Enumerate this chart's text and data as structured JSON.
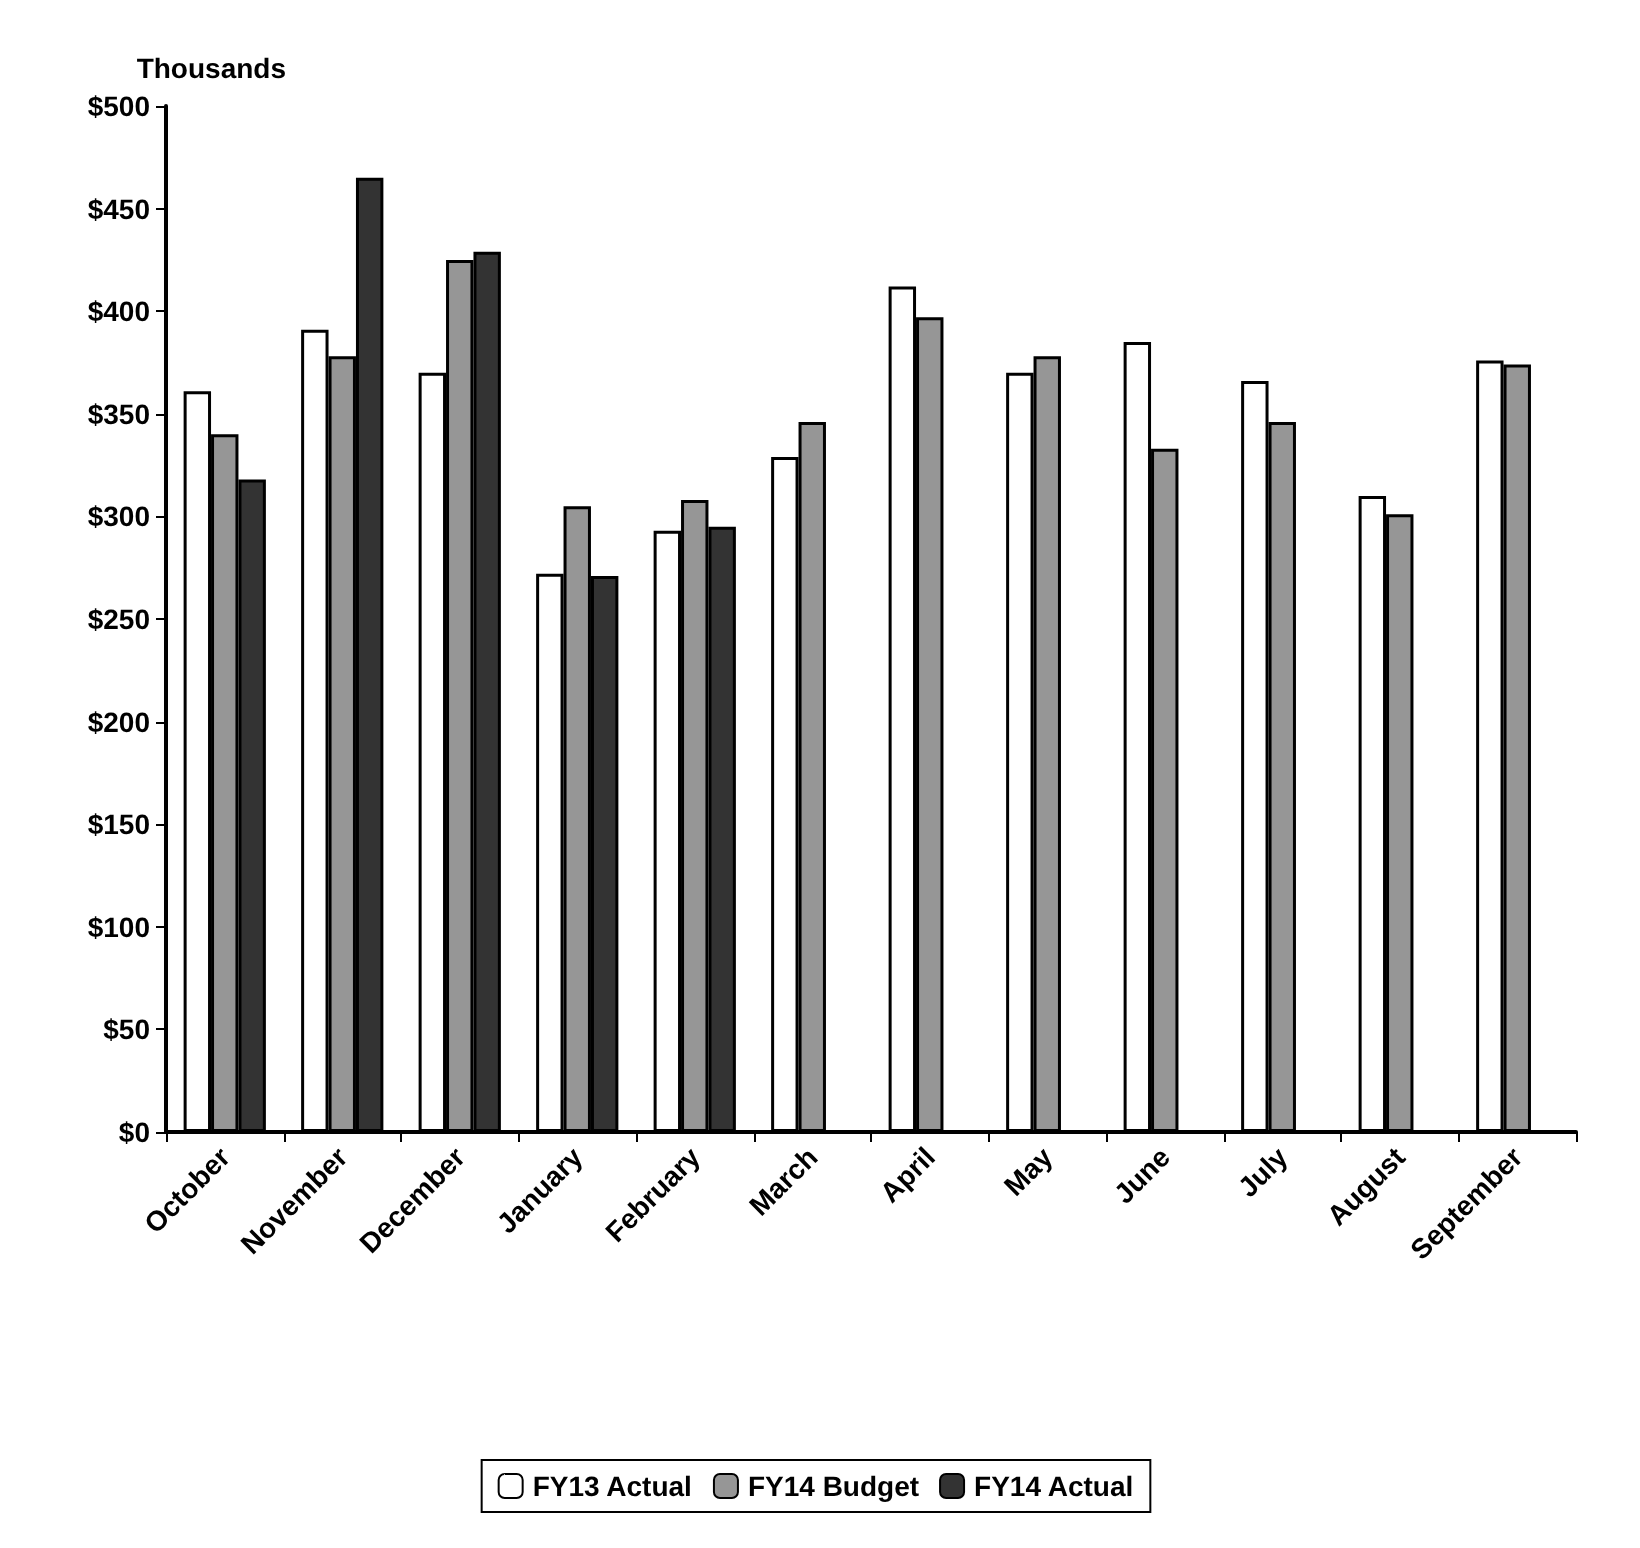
{
  "chart_data": {
    "type": "bar",
    "ylabel": "Thousands",
    "categories": [
      "October",
      "November",
      "December",
      "January",
      "February",
      "March",
      "April",
      "May",
      "June",
      "July",
      "August",
      "September"
    ],
    "series": [
      {
        "name": "FY13 Actual",
        "color": "#ffffff",
        "values": [
          361,
          391,
          370,
          272,
          293,
          329,
          412,
          370,
          385,
          366,
          310,
          376
        ]
      },
      {
        "name": "FY14 Budget",
        "color": "#969696",
        "values": [
          340,
          378,
          425,
          305,
          308,
          346,
          397,
          378,
          333,
          346,
          301,
          374
        ]
      },
      {
        "name": "FY14 Actual",
        "color": "#333333",
        "values": [
          318,
          465,
          429,
          271,
          295,
          null,
          null,
          null,
          null,
          null,
          null,
          null
        ]
      }
    ],
    "ylim": [
      0,
      500
    ],
    "yticks": [
      {
        "value": 0,
        "label": "$0"
      },
      {
        "value": 50,
        "label": "$50"
      },
      {
        "value": 100,
        "label": "$100"
      },
      {
        "value": 150,
        "label": "$150"
      },
      {
        "value": 200,
        "label": "$200"
      },
      {
        "value": 250,
        "label": "$250"
      },
      {
        "value": 300,
        "label": "$300"
      },
      {
        "value": 350,
        "label": "$350"
      },
      {
        "value": 400,
        "label": "$400"
      },
      {
        "value": 450,
        "label": "$450"
      },
      {
        "value": 500,
        "label": "$500"
      }
    ],
    "grid": false,
    "legend": "bottom"
  }
}
